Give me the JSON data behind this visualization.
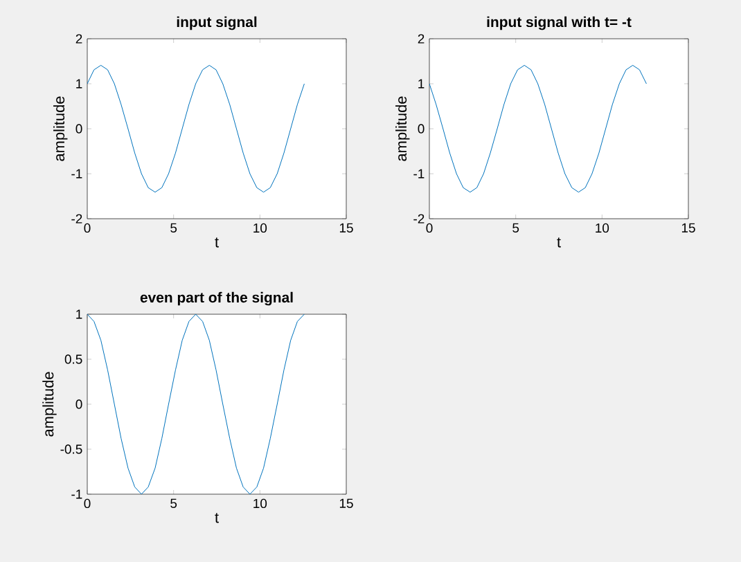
{
  "chart_data": [
    {
      "type": "line",
      "title": "input signal",
      "xlabel": "t",
      "ylabel": "amplitude",
      "xlim": [
        0,
        15
      ],
      "xticks": [
        0,
        5,
        10,
        15
      ],
      "ylim": [
        -2,
        2
      ],
      "yticks": [
        -2,
        -1,
        0,
        1,
        2
      ],
      "series": [
        {
          "color": "#0072bd",
          "x": [
            0,
            0.39,
            0.79,
            1.18,
            1.57,
            1.96,
            2.36,
            2.75,
            3.14,
            3.53,
            3.93,
            4.32,
            4.71,
            5.11,
            5.5,
            5.89,
            6.28,
            6.68,
            7.07,
            7.46,
            7.85,
            8.25,
            8.64,
            9.03,
            9.42,
            9.82,
            10.21,
            10.6,
            11.0,
            11.39,
            11.78,
            12.17,
            12.57
          ],
          "values": [
            1,
            1.31,
            1.41,
            1.31,
            1,
            0.54,
            0,
            -0.54,
            -1,
            -1.31,
            -1.41,
            -1.31,
            -1,
            -0.54,
            0,
            0.54,
            1,
            1.31,
            1.41,
            1.31,
            1,
            0.54,
            0,
            -0.54,
            -1,
            -1.31,
            -1.41,
            -1.31,
            -1,
            -0.54,
            0,
            0.54,
            1
          ]
        }
      ]
    },
    {
      "type": "line",
      "title": "input signal with t= -t",
      "xlabel": "t",
      "ylabel": "amplitude",
      "xlim": [
        0,
        15
      ],
      "xticks": [
        0,
        5,
        10,
        15
      ],
      "ylim": [
        -2,
        2
      ],
      "yticks": [
        -2,
        -1,
        0,
        1,
        2
      ],
      "series": [
        {
          "color": "#0072bd",
          "x": [
            0,
            0.39,
            0.79,
            1.18,
            1.57,
            1.96,
            2.36,
            2.75,
            3.14,
            3.53,
            3.93,
            4.32,
            4.71,
            5.11,
            5.5,
            5.89,
            6.28,
            6.68,
            7.07,
            7.46,
            7.85,
            8.25,
            8.64,
            9.03,
            9.42,
            9.82,
            10.21,
            10.6,
            11.0,
            11.39,
            11.78,
            12.17,
            12.57
          ],
          "values": [
            1,
            0.54,
            0,
            -0.54,
            -1,
            -1.31,
            -1.41,
            -1.31,
            -1,
            -0.54,
            0,
            0.54,
            1,
            1.31,
            1.41,
            1.31,
            1,
            0.54,
            0,
            -0.54,
            -1,
            -1.31,
            -1.41,
            -1.31,
            -1,
            -0.54,
            0,
            0.54,
            1,
            1.31,
            1.41,
            1.31,
            1
          ]
        }
      ]
    },
    {
      "type": "line",
      "title": "even part of the signal",
      "xlabel": "t",
      "ylabel": "amplitude",
      "xlim": [
        0,
        15
      ],
      "xticks": [
        0,
        5,
        10,
        15
      ],
      "ylim": [
        -1,
        1
      ],
      "yticks": [
        -1,
        -0.5,
        0,
        0.5,
        1
      ],
      "series": [
        {
          "color": "#0072bd",
          "x": [
            0,
            0.39,
            0.79,
            1.18,
            1.57,
            1.96,
            2.36,
            2.75,
            3.14,
            3.53,
            3.93,
            4.32,
            4.71,
            5.11,
            5.5,
            5.89,
            6.28,
            6.68,
            7.07,
            7.46,
            7.85,
            8.25,
            8.64,
            9.03,
            9.42,
            9.82,
            10.21,
            10.6,
            11.0,
            11.39,
            11.78,
            12.17,
            12.57
          ],
          "values": [
            1,
            0.92,
            0.71,
            0.38,
            0,
            -0.38,
            -0.71,
            -0.92,
            -1,
            -0.92,
            -0.71,
            -0.38,
            0,
            0.38,
            0.71,
            0.92,
            1,
            0.92,
            0.71,
            0.38,
            0,
            -0.38,
            -0.71,
            -0.92,
            -1,
            -0.92,
            -0.71,
            -0.38,
            0,
            0.38,
            0.71,
            0.92,
            1
          ]
        }
      ]
    }
  ]
}
